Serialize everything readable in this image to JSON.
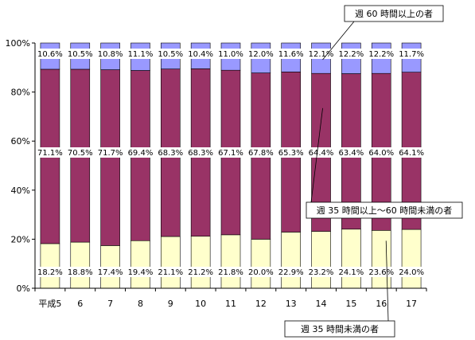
{
  "chart_data": {
    "type": "bar",
    "stacked": true,
    "normalized": true,
    "categories": [
      "平成5",
      "6",
      "7",
      "8",
      "9",
      "10",
      "11",
      "12",
      "13",
      "14",
      "15",
      "16",
      "17"
    ],
    "series": [
      {
        "name": "週35時間未満の者",
        "color": "#ffffcc",
        "values": [
          18.2,
          18.8,
          17.4,
          19.4,
          21.1,
          21.2,
          21.8,
          20.0,
          22.9,
          23.2,
          24.1,
          23.6,
          24.0
        ],
        "labels": [
          "18.2%",
          "18.8%",
          "17.4%",
          "19.4%",
          "21.1%",
          "21.2%",
          "21.8%",
          "20.0%",
          "22.9%",
          "23.2%",
          "24.1%",
          "23.6%",
          "24.0%"
        ]
      },
      {
        "name": "週35時間以上～60時間未満の者",
        "color": "#993366",
        "values": [
          71.1,
          70.5,
          71.7,
          69.4,
          68.3,
          68.3,
          67.1,
          67.8,
          65.3,
          64.4,
          63.4,
          64.0,
          64.1
        ],
        "labels": [
          "71.1%",
          "70.5%",
          "71.7%",
          "69.4%",
          "68.3%",
          "68.3%",
          "67.1%",
          "67.8%",
          "65.3%",
          "64.4%",
          "63.4%",
          "64.0%",
          "64.1%"
        ]
      },
      {
        "name": "週60時間以上の者",
        "color": "#9999ff",
        "values": [
          10.6,
          10.5,
          10.8,
          11.1,
          10.5,
          10.4,
          11.0,
          12.0,
          11.6,
          12.1,
          12.2,
          12.2,
          11.7
        ],
        "labels": [
          "10.6%",
          "10.5%",
          "10.8%",
          "11.1%",
          "10.5%",
          "10.4%",
          "11.0%",
          "12.0%",
          "11.6%",
          "12.1%",
          "12.2%",
          "12.2%",
          "11.7%"
        ]
      }
    ],
    "yticks": [
      "0%",
      "20%",
      "40%",
      "60%",
      "80%",
      "100%"
    ],
    "ylim": [
      0,
      100
    ],
    "grid": false,
    "legend": "callouts",
    "callouts": [
      {
        "series": 2,
        "text": "週 60 時間以上の者"
      },
      {
        "series": 1,
        "text": "週 35 時間以上～60 時間未満の者"
      },
      {
        "series": 0,
        "text": "週 35 時間未満の者"
      }
    ]
  }
}
